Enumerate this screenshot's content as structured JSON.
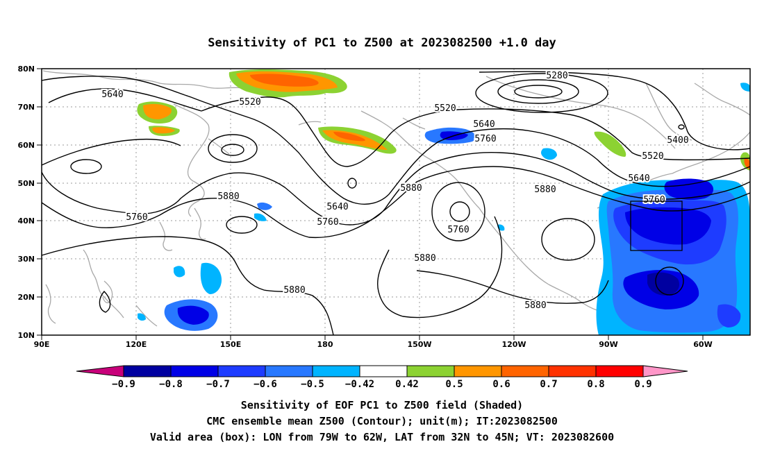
{
  "title": "Sensitivity of PC1 to Z500 at 2023082500 +1.0 day",
  "map": {
    "lon_labels": [
      "90E",
      "120E",
      "150E",
      "180",
      "150W",
      "120W",
      "90W",
      "60W"
    ],
    "lat_labels": [
      "80N",
      "70N",
      "60N",
      "50N",
      "40N",
      "30N",
      "20N",
      "10N"
    ],
    "contour_labels": [
      "5640",
      "5520",
      "5520",
      "5640",
      "5760",
      "5280",
      "5400",
      "5520",
      "5640",
      "5760",
      "5880",
      "5640",
      "5760",
      "5880",
      "5760",
      "5880",
      "5760",
      "5880",
      "5880",
      "5880"
    ],
    "valid_box": {
      "lon_w": "79W",
      "lon_e": "62W",
      "lat_s": "32N",
      "lat_n": "45N"
    }
  },
  "colorbar": {
    "ticks": [
      "-0.9",
      "-0.8",
      "-0.7",
      "-0.6",
      "-0.5",
      "-0.42",
      "0.42",
      "0.5",
      "0.6",
      "0.7",
      "0.8",
      "0.9"
    ],
    "colors": [
      "#c8007a",
      "#0000a0",
      "#0000e6",
      "#1e3cff",
      "#2878ff",
      "#00b4ff",
      "#ffffff",
      "#8cd232",
      "#ff9600",
      "#ff6400",
      "#ff3200",
      "#ff0000",
      "#ff96c8"
    ]
  },
  "caption": {
    "line1": "Sensitivity of EOF PC1 to Z500 field (Shaded)",
    "line2": "CMC ensemble mean Z500 (Contour); unit(m); IT:2023082500",
    "line3": "Valid area (box): LON from 79W to 62W, LAT from 32N to 45N; VT: 2023082600"
  }
}
